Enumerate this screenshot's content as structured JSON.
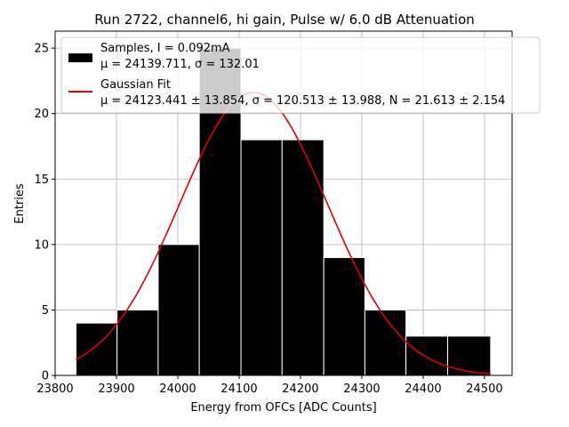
{
  "chart_data": {
    "type": "bar",
    "title": "Run 2722, channel6, hi gain, Pulse w/ 6.0 dB Attenuation",
    "xlabel": "Energy from OFCs [ADC Counts]",
    "ylabel": "Entries",
    "xlim": [
      23800,
      24545
    ],
    "ylim": [
      0,
      26.3
    ],
    "xticks": [
      23800,
      23900,
      24000,
      24100,
      24200,
      24300,
      24400,
      24500
    ],
    "yticks": [
      0,
      5,
      10,
      15,
      20,
      25
    ],
    "grid": true,
    "legend_position": "upper-right",
    "histogram": {
      "name": "Samples, I = 0.092mA",
      "stats": "μ = 24139.711, σ = 132.01",
      "color": "#000000",
      "bin_edges": [
        23834,
        23901,
        23968,
        24035,
        24103,
        24170,
        24238,
        24305,
        24372,
        24440,
        24510
      ],
      "counts": [
        4,
        5,
        10,
        25,
        18,
        18,
        9,
        5,
        3,
        3
      ]
    },
    "fit": {
      "name": "Gaussian Fit",
      "params": "μ = 24123.441 ± 13.854, σ = 120.513 ± 13.988, N = 21.613 ± 2.154",
      "color": "#e00000",
      "mu": 24123.441,
      "sigma": 120.513,
      "N": 21.613,
      "x_range": [
        23834,
        24510
      ]
    }
  }
}
